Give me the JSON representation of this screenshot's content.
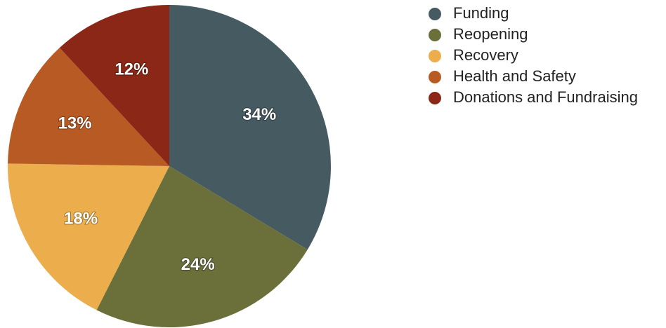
{
  "chart_data": {
    "type": "pie",
    "categories": [
      "Funding",
      "Reopening",
      "Recovery",
      "Health and Safety",
      "Donations and Fundraising"
    ],
    "values": [
      34,
      24,
      18,
      13,
      12
    ],
    "value_labels": [
      "34%",
      "24%",
      "18%",
      "13%",
      "12%"
    ],
    "colors": [
      "#465a62",
      "#6b6f3a",
      "#ecae4c",
      "#b85a24",
      "#8a2716"
    ],
    "legend": "right"
  }
}
